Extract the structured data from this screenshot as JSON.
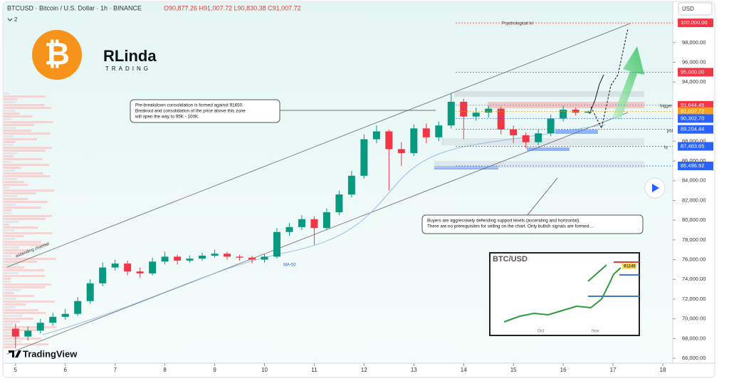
{
  "header": {
    "symbol": "BTCUSD · Bitcoin / U.S. Dollar · 1h · BINANCE",
    "ohlc": "O90,877.26 H91,007.72 L90,830.38 C91,007.72",
    "collapsed_count": "2",
    "currency": "USD"
  },
  "brand": {
    "logo_symbol": "₿",
    "name": "RLinda",
    "sub": "TRADING",
    "platform": "TradingView"
  },
  "annotations": {
    "psychological": "Psychological lvl",
    "trigger": "trigger",
    "poi": "poi",
    "lq": "lq",
    "channel": "ascending channel",
    "ma": "MA-50",
    "note_top": [
      "Pre-breakdown consolidation is formed against 91650.",
      "Breakout and consolidation of the price above this zone",
      "will open the way to 95K - 100K."
    ],
    "note_bottom": [
      "Buyers are aggressively defending support levels (ascending and horizontal).",
      "There are no prerequisites for selling on the chart. Only bullish signals are formed...."
    ]
  },
  "inset": {
    "title": "BTC/USD",
    "tag": "91245",
    "months": [
      "Oct",
      "Nov"
    ]
  },
  "chart_data": {
    "type": "candlestick",
    "x": [
      5.0,
      5.25,
      5.5,
      5.75,
      6.0,
      6.25,
      6.5,
      6.75,
      7.0,
      7.25,
      7.5,
      7.75,
      8.0,
      8.25,
      8.5,
      8.75,
      9.0,
      9.25,
      9.5,
      9.75,
      10.0,
      10.25,
      10.5,
      10.75,
      11.0,
      11.25,
      11.5,
      11.75,
      12.0,
      12.25,
      12.5,
      12.75,
      13.0,
      13.25,
      13.5,
      13.75,
      14.0,
      14.25,
      14.5,
      14.75,
      15.0,
      15.25,
      15.5,
      15.75,
      16.0,
      16.25,
      16.5
    ],
    "open": [
      69000,
      68200,
      68800,
      69600,
      70200,
      70500,
      71800,
      73600,
      75200,
      75600,
      74800,
      74600,
      75800,
      76300,
      75900,
      76100,
      76400,
      76600,
      76300,
      76200,
      76000,
      76300,
      78800,
      79300,
      80100,
      79200,
      80800,
      82600,
      84500,
      88200,
      89000,
      87200,
      86800,
      89300,
      88400,
      89600,
      92000,
      90500,
      90900,
      91300,
      89200,
      88600,
      87900,
      88800,
      90300,
      91200,
      90900
    ],
    "high": [
      69500,
      69200,
      70000,
      70600,
      71000,
      72200,
      74000,
      75700,
      76000,
      75900,
      75200,
      76200,
      76800,
      76500,
      76400,
      76700,
      77000,
      76800,
      76500,
      76400,
      76600,
      79200,
      79700,
      80500,
      80400,
      81200,
      83000,
      85000,
      88700,
      89600,
      89200,
      87900,
      89700,
      89800,
      90000,
      92800,
      92300,
      91400,
      91600,
      91500,
      89600,
      88900,
      89200,
      90700,
      91600,
      91400,
      91100
    ],
    "low": [
      67000,
      67800,
      68500,
      69300,
      69900,
      70300,
      71500,
      73300,
      74900,
      74400,
      74200,
      74400,
      75500,
      75500,
      75700,
      75900,
      76200,
      76000,
      75900,
      75600,
      75700,
      76100,
      78400,
      79000,
      77500,
      79000,
      80500,
      82300,
      84200,
      87800,
      83000,
      85500,
      86500,
      87800,
      88000,
      89300,
      88200,
      90100,
      90400,
      88700,
      87800,
      87300,
      87600,
      88500,
      90000,
      90600,
      90830.38
    ],
    "close": [
      68200,
      68800,
      69600,
      70200,
      70500,
      71800,
      73600,
      75200,
      75600,
      74800,
      74600,
      75800,
      76300,
      75900,
      76100,
      76400,
      76600,
      76300,
      76200,
      76000,
      76300,
      78800,
      79300,
      80100,
      79200,
      80800,
      82600,
      84500,
      88200,
      89000,
      87200,
      86800,
      89300,
      88400,
      89600,
      92000,
      90500,
      90900,
      91300,
      89200,
      88600,
      87900,
      88800,
      90300,
      91200,
      90900,
      91007.72
    ],
    "up_color": "#089981",
    "down_color": "#f23645",
    "xlim": [
      4.76,
      18.2
    ],
    "xticks": [
      5,
      6,
      7,
      8,
      9,
      10,
      11,
      12,
      13,
      14,
      15,
      16,
      17,
      18
    ],
    "ylim": [
      65500,
      102100
    ],
    "yticks": [
      {
        "value": 98000,
        "label": "98,000.00"
      },
      {
        "value": 96000,
        "label": "96,000.00"
      },
      {
        "value": 94000,
        "label": "94,000.00"
      },
      {
        "value": 88000,
        "label": "88,000.00"
      },
      {
        "value": 86000,
        "label": "86,000.00"
      },
      {
        "value": 84000,
        "label": "84,000.00"
      },
      {
        "value": 82000,
        "label": "82,000.00"
      },
      {
        "value": 80000,
        "label": "80,000.00"
      },
      {
        "value": 78000,
        "label": "78,000.00"
      },
      {
        "value": 76000,
        "label": "76,000.00"
      },
      {
        "value": 74000,
        "label": "74,000.00"
      },
      {
        "value": 72000,
        "label": "72,000.00"
      },
      {
        "value": 70000,
        "label": "70,000.00"
      },
      {
        "value": 68000,
        "label": "68,000.00"
      },
      {
        "value": 66000,
        "label": "66,000.00"
      }
    ],
    "price_labels": [
      {
        "value": 100000,
        "label": "100,000.00",
        "color": "#f23645"
      },
      {
        "value": 95000,
        "label": "95,000.00",
        "color": "#f23645"
      },
      {
        "value": 91644.45,
        "label": "91,644.45",
        "color": "#f23645"
      },
      {
        "value": 91007.72,
        "label": "91,007.72",
        "color": "#f7a21b"
      },
      {
        "value": 90302.7,
        "label": "90,302.70",
        "color": "#2962ff"
      },
      {
        "value": 89204.44,
        "label": "89,204.44",
        "color": "#2962ff"
      },
      {
        "value": 87483.65,
        "label": "87,483.65",
        "color": "#2962ff"
      },
      {
        "value": 85496.92,
        "label": "85,496.92",
        "color": "#2962ff"
      }
    ]
  }
}
